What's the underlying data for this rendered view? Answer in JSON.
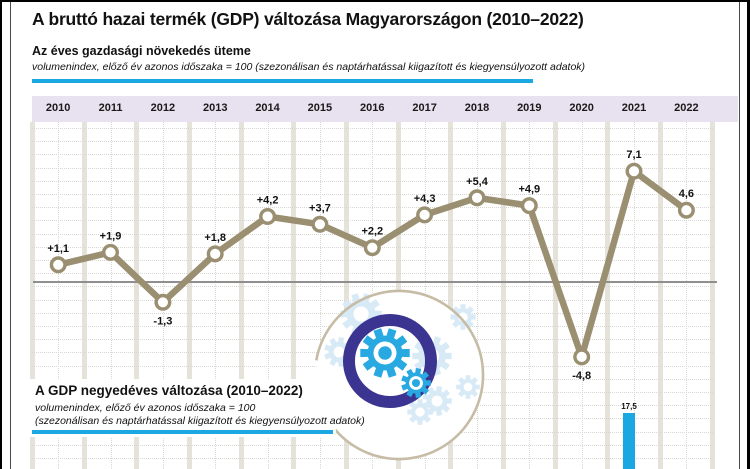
{
  "title": "A bruttó hazai termék (GDP) változása Magyarországon (2010–2022)",
  "section1": {
    "heading": "Az éves gazdasági növekedés üteme",
    "subtitle": "volumenindex, előző év azonos időszaka = 100 (szezonálisan és naptárhatással kiigazított és kiegyensúlyozott adatok)"
  },
  "section2": {
    "heading": "A GDP negyedéves változása (2010–2022)",
    "subtitle_line1": "volumenindex, előző év azonos időszaka = 100",
    "subtitle_line2": "(szezonálisan és naptárhatással kiigazított és kiegyensúlyozott adatok)"
  },
  "chart_data": [
    {
      "type": "line",
      "title": "Az éves gazdasági növekedés üteme",
      "subtitle": "volumenindex, előző év azonos időszaka = 100 (szezonálisan és naptárhatással kiigazított és kiegyensúlyozott adatok)",
      "categories": [
        "2010",
        "2011",
        "2012",
        "2013",
        "2014",
        "2015",
        "2016",
        "2017",
        "2018",
        "2019",
        "2020",
        "2021",
        "2022"
      ],
      "values": [
        1.1,
        1.9,
        -1.3,
        1.8,
        4.2,
        3.7,
        2.2,
        4.3,
        5.4,
        4.9,
        -4.8,
        7.1,
        4.6
      ],
      "point_labels": [
        "+1,1",
        "+1,9",
        "-1,3",
        "+1,8",
        "+4,2",
        "+3,7",
        "+2,2",
        "+4,3",
        "+5,4",
        "+4,9",
        "-4,8",
        "7,1",
        "4,6"
      ],
      "xlabel": "",
      "ylabel": "",
      "ylim": [
        -6,
        8
      ],
      "grid": true,
      "zero_line": true,
      "legend": "none"
    },
    {
      "type": "bar",
      "title": "A GDP negyedéves változása (2010–2022)",
      "subtitle": "volumenindex, előző év azonos időszaka = 100 (szezonálisan és naptárhatással kiigazított és kiegyensúlyozott adatok)",
      "note": "chart cropped at bottom of image; only one bar with its data label is visible",
      "visible_points": [
        {
          "label": "17,5",
          "value": 17.5
        }
      ]
    }
  ],
  "icons": {
    "decoration": "gears-illustration"
  },
  "colors": {
    "accent_blue": "#1aa7e2",
    "line_series": "#9a8f71",
    "year_band_bg": "#e8e1ef",
    "grid_separator": "#e5e2da",
    "zero_line": "#8f8f8f",
    "gear_ring_indigo": "#3b3591",
    "gear_blue": "#29a9e1",
    "gear_pale_blue": "#d9eaf7",
    "circle_tan": "#c6bca6"
  }
}
